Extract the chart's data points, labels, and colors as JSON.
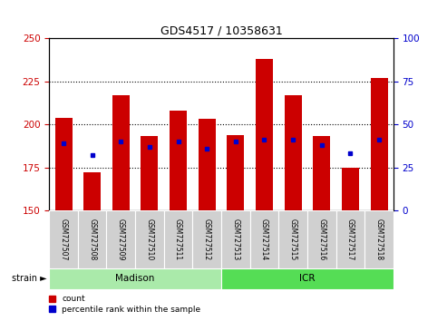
{
  "title": "GDS4517 / 10358631",
  "samples": [
    "GSM727507",
    "GSM727508",
    "GSM727509",
    "GSM727510",
    "GSM727511",
    "GSM727512",
    "GSM727513",
    "GSM727514",
    "GSM727515",
    "GSM727516",
    "GSM727517",
    "GSM727518"
  ],
  "bar_tops": [
    204,
    172,
    217,
    193,
    208,
    203,
    194,
    238,
    217,
    193,
    175,
    227
  ],
  "bar_bottom": 150,
  "percentile_values": [
    189,
    182,
    190,
    187,
    190,
    186,
    190,
    191,
    191,
    188,
    183,
    191
  ],
  "ylim_left": [
    150,
    250
  ],
  "ylim_right": [
    0,
    100
  ],
  "yticks_left": [
    150,
    175,
    200,
    225,
    250
  ],
  "yticks_right": [
    0,
    25,
    50,
    75,
    100
  ],
  "bar_color": "#cc0000",
  "dot_color": "#0000cc",
  "left_tick_color": "#cc0000",
  "right_tick_color": "#0000cc",
  "strains": [
    {
      "label": "Madison",
      "start": 0,
      "end": 6,
      "color": "#aaeaaa"
    },
    {
      "label": "ICR",
      "start": 6,
      "end": 12,
      "color": "#55dd55"
    }
  ],
  "legend_count_label": "count",
  "legend_pct_label": "percentile rank within the sample",
  "bar_width": 0.6
}
